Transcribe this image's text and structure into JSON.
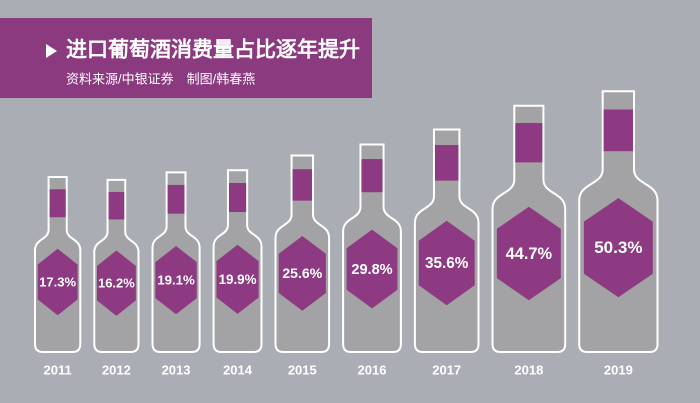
{
  "chart_data": {
    "type": "bar",
    "title": "进口葡萄酒消费量占比逐年提升",
    "subtitle": "资料来源/中银证券　制图/韩春燕",
    "categories": [
      "2011",
      "2012",
      "2013",
      "2014",
      "2015",
      "2016",
      "2017",
      "2018",
      "2019"
    ],
    "values": [
      17.3,
      16.2,
      19.1,
      19.9,
      25.6,
      29.8,
      35.6,
      44.7,
      50.3
    ],
    "value_labels": [
      "17.3%",
      "16.2%",
      "19.1%",
      "19.9%",
      "25.6%",
      "29.8%",
      "35.6%",
      "44.7%",
      "50.3%"
    ],
    "color": "#8e3a82"
  }
}
